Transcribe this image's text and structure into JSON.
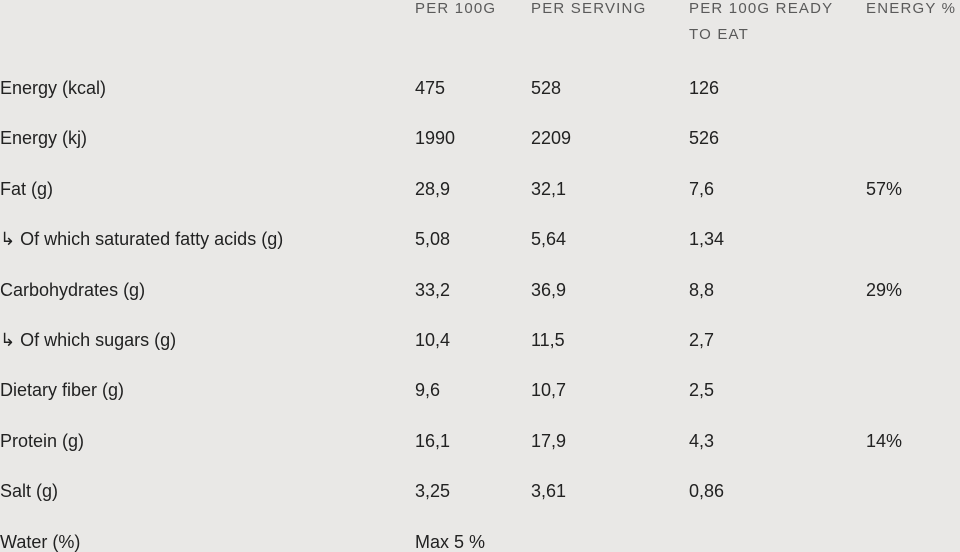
{
  "table": {
    "headers": [
      "PER 100G",
      "PER SERVING",
      "PER 100G READY TO EAT",
      "ENERGY %"
    ],
    "rows": [
      {
        "label": "Energy (kcal)",
        "values": [
          "475",
          "528",
          "126"
        ]
      },
      {
        "label": "Energy (kj)",
        "values": [
          "1990",
          "2209",
          "526"
        ]
      },
      {
        "label": "Fat (g)",
        "values": [
          "28,9",
          "32,1",
          "7,6",
          "57%"
        ]
      },
      {
        "label": "↳ Of which saturated fatty acids (g)",
        "values": [
          "5,08",
          "5,64",
          "1,34"
        ]
      },
      {
        "label": "Carbohydrates (g)",
        "values": [
          "33,2",
          "36,9",
          "8,8",
          "29%"
        ]
      },
      {
        "label": "↳ Of which sugars (g)",
        "values": [
          "10,4",
          "11,5",
          "2,7"
        ]
      },
      {
        "label": "Dietary fiber (g)",
        "values": [
          "9,6",
          "10,7",
          "2,5"
        ]
      },
      {
        "label": "Protein (g)",
        "values": [
          "16,1",
          "17,9",
          "4,3",
          "14%"
        ]
      },
      {
        "label": "Salt (g)",
        "values": [
          "3,25",
          "3,61",
          "0,86"
        ]
      },
      {
        "label": "Water (%)",
        "values": [
          "Max 5 %"
        ]
      }
    ]
  }
}
